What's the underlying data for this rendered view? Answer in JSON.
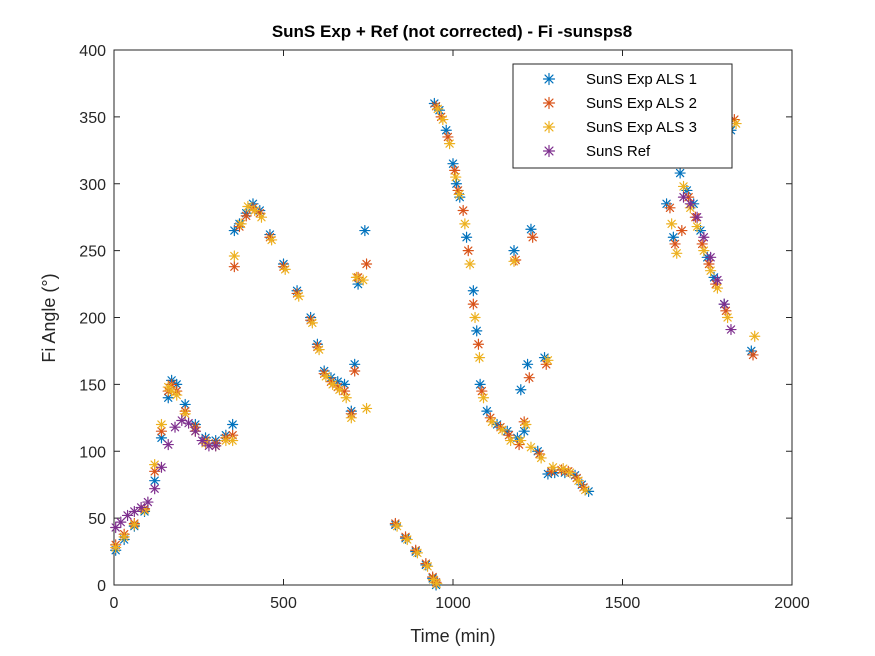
{
  "chart_data": {
    "type": "scatter",
    "title": "SunS Exp + Ref  (not corrected) - Fi -sunsps8",
    "xlabel": "Time (min)",
    "ylabel": "Fi Angle (°)",
    "xlim": [
      0,
      2000
    ],
    "ylim": [
      0,
      400
    ],
    "xticks": [
      0,
      500,
      1000,
      1500,
      2000
    ],
    "yticks": [
      0,
      50,
      100,
      150,
      200,
      250,
      300,
      350,
      400
    ],
    "grid": false,
    "legend_position": "top-right",
    "marker": "*",
    "series": [
      {
        "name": "SunS Exp ALS 1",
        "color": "#0072BD",
        "points": [
          [
            5,
            26
          ],
          [
            30,
            34
          ],
          [
            60,
            44
          ],
          [
            90,
            55
          ],
          [
            120,
            78
          ],
          [
            140,
            110
          ],
          [
            160,
            140
          ],
          [
            170,
            153
          ],
          [
            185,
            150
          ],
          [
            210,
            135
          ],
          [
            240,
            120
          ],
          [
            270,
            110
          ],
          [
            300,
            108
          ],
          [
            330,
            112
          ],
          [
            350,
            120
          ],
          [
            355,
            265
          ],
          [
            370,
            270
          ],
          [
            390,
            278
          ],
          [
            410,
            285
          ],
          [
            430,
            280
          ],
          [
            460,
            262
          ],
          [
            500,
            240
          ],
          [
            540,
            220
          ],
          [
            580,
            200
          ],
          [
            600,
            180
          ],
          [
            620,
            160
          ],
          [
            640,
            155
          ],
          [
            660,
            152
          ],
          [
            680,
            150
          ],
          [
            700,
            130
          ],
          [
            710,
            165
          ],
          [
            720,
            225
          ],
          [
            740,
            265
          ],
          [
            830,
            45
          ],
          [
            860,
            35
          ],
          [
            890,
            25
          ],
          [
            920,
            15
          ],
          [
            940,
            5
          ],
          [
            950,
            0
          ],
          [
            945,
            360
          ],
          [
            960,
            355
          ],
          [
            980,
            340
          ],
          [
            1000,
            315
          ],
          [
            1010,
            300
          ],
          [
            1020,
            290
          ],
          [
            1040,
            260
          ],
          [
            1060,
            220
          ],
          [
            1070,
            190
          ],
          [
            1080,
            150
          ],
          [
            1100,
            130
          ],
          [
            1130,
            120
          ],
          [
            1160,
            115
          ],
          [
            1180,
            250
          ],
          [
            1190,
            110
          ],
          [
            1200,
            146
          ],
          [
            1210,
            115
          ],
          [
            1220,
            165
          ],
          [
            1230,
            266
          ],
          [
            1250,
            100
          ],
          [
            1270,
            170
          ],
          [
            1280,
            83
          ],
          [
            1300,
            84
          ],
          [
            1330,
            84
          ],
          [
            1360,
            82
          ],
          [
            1380,
            75
          ],
          [
            1400,
            70
          ],
          [
            1630,
            285
          ],
          [
            1650,
            260
          ],
          [
            1670,
            308
          ],
          [
            1690,
            295
          ],
          [
            1710,
            285
          ],
          [
            1730,
            265
          ],
          [
            1750,
            245
          ],
          [
            1770,
            230
          ],
          [
            1800,
            210
          ],
          [
            1820,
            340
          ],
          [
            1880,
            175
          ]
        ]
      },
      {
        "name": "SunS Exp ALS 2",
        "color": "#D95319",
        "points": [
          [
            5,
            30
          ],
          [
            30,
            38
          ],
          [
            60,
            46
          ],
          [
            90,
            57
          ],
          [
            120,
            85
          ],
          [
            140,
            115
          ],
          [
            160,
            145
          ],
          [
            170,
            150
          ],
          [
            185,
            145
          ],
          [
            210,
            130
          ],
          [
            240,
            118
          ],
          [
            270,
            108
          ],
          [
            300,
            106
          ],
          [
            330,
            110
          ],
          [
            350,
            112
          ],
          [
            355,
            238
          ],
          [
            370,
            268
          ],
          [
            390,
            276
          ],
          [
            410,
            282
          ],
          [
            430,
            278
          ],
          [
            460,
            260
          ],
          [
            500,
            238
          ],
          [
            540,
            218
          ],
          [
            580,
            198
          ],
          [
            600,
            178
          ],
          [
            620,
            158
          ],
          [
            640,
            152
          ],
          [
            660,
            148
          ],
          [
            680,
            145
          ],
          [
            700,
            128
          ],
          [
            710,
            160
          ],
          [
            720,
            230
          ],
          [
            745,
            240
          ],
          [
            830,
            46
          ],
          [
            860,
            36
          ],
          [
            890,
            26
          ],
          [
            920,
            16
          ],
          [
            940,
            6
          ],
          [
            950,
            2
          ],
          [
            950,
            358
          ],
          [
            965,
            350
          ],
          [
            985,
            335
          ],
          [
            1005,
            310
          ],
          [
            1015,
            295
          ],
          [
            1030,
            280
          ],
          [
            1045,
            250
          ],
          [
            1060,
            210
          ],
          [
            1075,
            180
          ],
          [
            1085,
            145
          ],
          [
            1110,
            125
          ],
          [
            1140,
            118
          ],
          [
            1165,
            112
          ],
          [
            1185,
            243
          ],
          [
            1195,
            105
          ],
          [
            1210,
            122
          ],
          [
            1225,
            155
          ],
          [
            1235,
            260
          ],
          [
            1255,
            98
          ],
          [
            1275,
            165
          ],
          [
            1290,
            85
          ],
          [
            1320,
            86
          ],
          [
            1340,
            85
          ],
          [
            1365,
            80
          ],
          [
            1385,
            73
          ],
          [
            1640,
            282
          ],
          [
            1655,
            255
          ],
          [
            1675,
            265
          ],
          [
            1695,
            290
          ],
          [
            1715,
            275
          ],
          [
            1735,
            255
          ],
          [
            1755,
            240
          ],
          [
            1775,
            225
          ],
          [
            1805,
            205
          ],
          [
            1830,
            348
          ],
          [
            1885,
            172
          ]
        ]
      },
      {
        "name": "SunS Exp ALS 3",
        "color": "#EDB120",
        "points": [
          [
            5,
            28
          ],
          [
            30,
            36
          ],
          [
            60,
            45
          ],
          [
            90,
            56
          ],
          [
            120,
            90
          ],
          [
            140,
            120
          ],
          [
            160,
            148
          ],
          [
            170,
            145
          ],
          [
            185,
            142
          ],
          [
            210,
            128
          ],
          [
            240,
            115
          ],
          [
            270,
            106
          ],
          [
            300,
            104
          ],
          [
            330,
            108
          ],
          [
            350,
            108
          ],
          [
            355,
            246
          ],
          [
            375,
            270
          ],
          [
            395,
            283
          ],
          [
            415,
            280
          ],
          [
            435,
            275
          ],
          [
            465,
            258
          ],
          [
            505,
            236
          ],
          [
            545,
            216
          ],
          [
            585,
            196
          ],
          [
            605,
            176
          ],
          [
            625,
            156
          ],
          [
            645,
            150
          ],
          [
            665,
            146
          ],
          [
            685,
            140
          ],
          [
            700,
            125
          ],
          [
            715,
            230
          ],
          [
            735,
            228
          ],
          [
            745,
            132
          ],
          [
            835,
            44
          ],
          [
            865,
            34
          ],
          [
            895,
            24
          ],
          [
            925,
            14
          ],
          [
            942,
            4
          ],
          [
            952,
            1
          ],
          [
            955,
            356
          ],
          [
            970,
            348
          ],
          [
            990,
            330
          ],
          [
            1008,
            305
          ],
          [
            1018,
            292
          ],
          [
            1035,
            270
          ],
          [
            1050,
            240
          ],
          [
            1065,
            200
          ],
          [
            1078,
            170
          ],
          [
            1090,
            140
          ],
          [
            1115,
            122
          ],
          [
            1145,
            116
          ],
          [
            1170,
            108
          ],
          [
            1180,
            242
          ],
          [
            1200,
            108
          ],
          [
            1215,
            120
          ],
          [
            1230,
            103
          ],
          [
            1260,
            95
          ],
          [
            1280,
            168
          ],
          [
            1295,
            88
          ],
          [
            1325,
            87
          ],
          [
            1345,
            84
          ],
          [
            1370,
            78
          ],
          [
            1390,
            71
          ],
          [
            1645,
            270
          ],
          [
            1660,
            248
          ],
          [
            1680,
            298
          ],
          [
            1700,
            282
          ],
          [
            1720,
            268
          ],
          [
            1740,
            250
          ],
          [
            1760,
            235
          ],
          [
            1780,
            222
          ],
          [
            1810,
            200
          ],
          [
            1835,
            345
          ],
          [
            1890,
            186
          ]
        ]
      },
      {
        "name": "SunS Ref",
        "color": "#7E2F8E",
        "points": [
          [
            5,
            43
          ],
          [
            20,
            47
          ],
          [
            40,
            52
          ],
          [
            60,
            55
          ],
          [
            80,
            58
          ],
          [
            100,
            62
          ],
          [
            120,
            72
          ],
          [
            140,
            88
          ],
          [
            160,
            105
          ],
          [
            180,
            118
          ],
          [
            200,
            123
          ],
          [
            220,
            121
          ],
          [
            240,
            115
          ],
          [
            260,
            108
          ],
          [
            280,
            104
          ],
          [
            300,
            104
          ],
          [
            1680,
            290
          ],
          [
            1700,
            285
          ],
          [
            1720,
            275
          ],
          [
            1740,
            260
          ],
          [
            1760,
            245
          ],
          [
            1780,
            228
          ],
          [
            1800,
            210
          ],
          [
            1820,
            191
          ]
        ]
      }
    ]
  }
}
